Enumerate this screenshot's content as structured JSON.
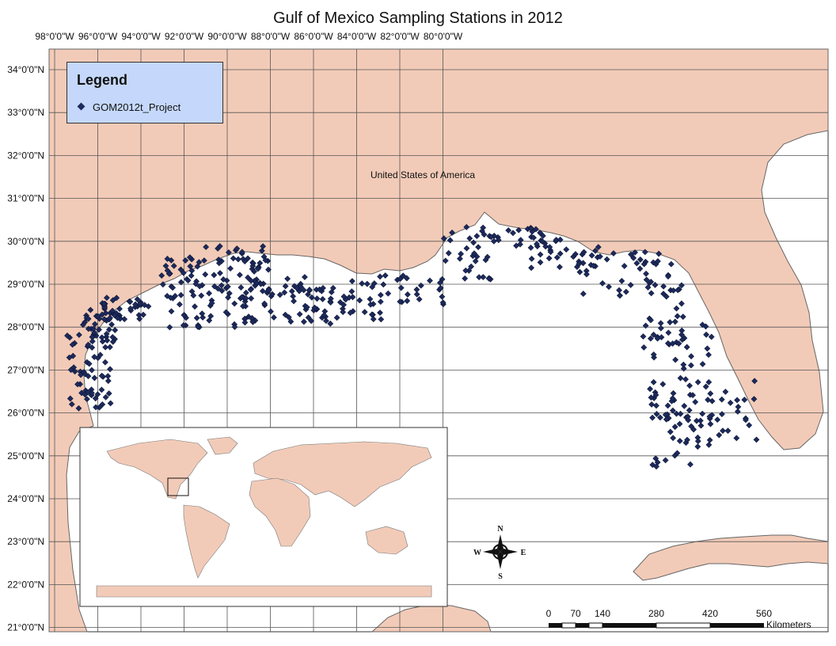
{
  "title": "Gulf of Mexico Sampling Stations in 2012",
  "country_label": "United States of America",
  "legend": {
    "title": "Legend",
    "items": [
      {
        "label": "GOM2012t_Project",
        "symbol": "diamond",
        "color": "#1c2a5c"
      }
    ]
  },
  "graticule": {
    "longitudes": [
      "98°0'0\"W",
      "96°0'0\"W",
      "94°0'0\"W",
      "92°0'0\"W",
      "90°0'0\"W",
      "88°0'0\"W",
      "86°0'0\"W",
      "84°0'0\"W",
      "82°0'0\"W",
      "80°0'0\"W"
    ],
    "latitudes": [
      "34°0'0\"N",
      "33°0'0\"N",
      "32°0'0\"N",
      "31°0'0\"N",
      "30°0'0\"N",
      "29°0'0\"N",
      "28°0'0\"N",
      "27°0'0\"N",
      "26°0'0\"N",
      "25°0'0\"N",
      "24°0'0\"N",
      "23°0'0\"N",
      "22°0'0\"N",
      "21°0'0\"N"
    ]
  },
  "north_arrow": {
    "n": "N",
    "s": "S",
    "e": "E",
    "w": "W"
  },
  "scale_bar": {
    "ticks": [
      "0",
      "70",
      "140",
      "280",
      "420",
      "560"
    ],
    "unit": "Kilometers"
  },
  "colors": {
    "land": "#f2cbb8",
    "water": "#ffffff",
    "station": "#1c2a5c",
    "legend_bg": "#c5d8fb"
  }
}
